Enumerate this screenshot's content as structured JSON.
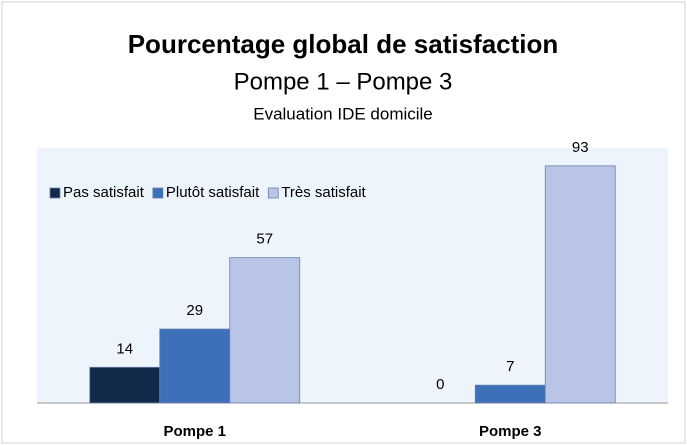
{
  "chart_data": {
    "type": "bar",
    "title": "Pourcentage global de satisfaction",
    "subtitle": [
      "Pompe 1 – Pompe 3",
      "Evaluation IDE domicile"
    ],
    "categories": [
      "Pompe 1",
      "Pompe 3"
    ],
    "series": [
      {
        "name": "Pas satisfait",
        "color": "#13294a",
        "values": [
          14,
          0
        ]
      },
      {
        "name": "Plutôt satisfait",
        "color": "#3d70b8",
        "values": [
          29,
          7
        ]
      },
      {
        "name": "Très satisfait",
        "color": "#b9c5e6",
        "values": [
          57,
          93
        ]
      }
    ],
    "ylim": [
      0,
      100
    ],
    "legend": "top-left"
  }
}
